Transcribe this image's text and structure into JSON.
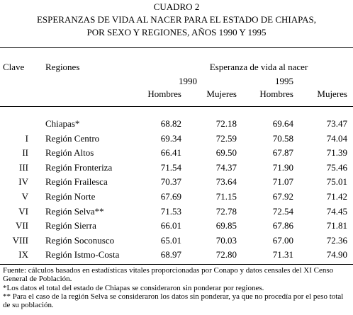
{
  "title": {
    "lines": [
      "CUADRO 2",
      "ESPERANZAS DE VIDA AL NACER PARA EL ESTADO DE CHIAPAS,",
      "POR SEXO Y REGIONES, AÑOS 1990 Y 1995"
    ]
  },
  "table": {
    "header": {
      "clave": "Clave",
      "regiones": "Regiones",
      "group": "Esperanza de vida al nacer",
      "years": [
        "1990",
        "1995"
      ],
      "sexes": [
        "Hombres",
        "Mujeres",
        "Hombres",
        "Mujeres"
      ]
    },
    "rows": [
      {
        "region": "Chiapas*",
        "values": [
          "68.82",
          "72.18",
          "69.64",
          "73.47"
        ]
      },
      {
        "clave": "I",
        "region": "Región Centro",
        "values": [
          "69.34",
          "72.59",
          "70.58",
          "74.04"
        ]
      },
      {
        "clave": "II",
        "region": "Región Altos",
        "values": [
          "66.41",
          "69.50",
          "67.87",
          "71.39"
        ]
      },
      {
        "clave": "III",
        "region": "Región Fronteriza",
        "values": [
          "71.54",
          "74.37",
          "71.90",
          "75.46"
        ]
      },
      {
        "clave": "IV",
        "region": "Región Frailesca",
        "values": [
          "70.37",
          "73.64",
          "71.07",
          "75.01"
        ]
      },
      {
        "clave": "V",
        "region": "Región Norte",
        "values": [
          "67.69",
          "71.15",
          "67.92",
          "71.42"
        ]
      },
      {
        "clave": "VI",
        "region": "Región Selva**",
        "values": [
          "71.53",
          "72.78",
          "72.54",
          "74.45"
        ]
      },
      {
        "clave": "VII",
        "region": "Región Sierra",
        "values": [
          "66.01",
          "69.85",
          "67.86",
          "71.81"
        ]
      },
      {
        "clave": "VIII",
        "region": "Región Soconusco",
        "values": [
          "65.01",
          "70.03",
          "67.00",
          "72.36"
        ]
      },
      {
        "clave": "IX",
        "region": "Región Istmo-Costa",
        "values": [
          "68.97",
          "72.80",
          "71.31",
          "74.90"
        ]
      }
    ]
  },
  "notes": [
    "Fuente: cálculos basados en estadísticas vitales proporcionadas por Conapo y datos censales del XI Censo General de Población.",
    "*Los datos el total del estado de Chiapas se consideraron sin ponderar por regiones.",
    "** Para el caso de la región Selva se consideraron los datos sin ponderar, ya que no procedía por el peso total de su población."
  ]
}
